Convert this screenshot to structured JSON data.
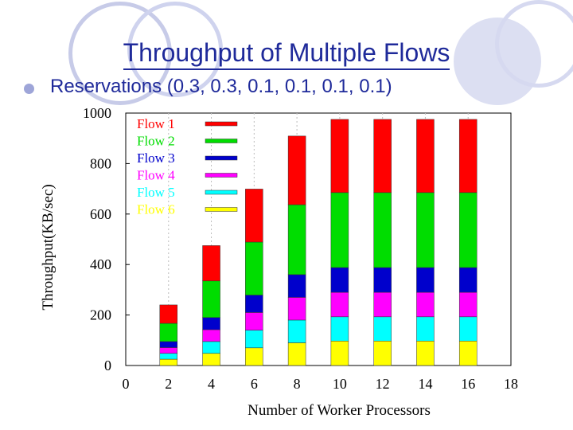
{
  "slide": {
    "title": "Throughput of Multiple Flows",
    "bullet": "Reservations (0.3, 0.3, 0.1, 0.1, 0.1, 0.1)"
  },
  "chart_data": {
    "type": "bar",
    "stacked": true,
    "xlabel": "Number of Worker Processors",
    "ylabel": "Throughput(KB/sec)",
    "xlim": [
      0,
      18
    ],
    "ylim": [
      0,
      1000
    ],
    "xticks": [
      0,
      2,
      4,
      6,
      8,
      10,
      12,
      14,
      16,
      18
    ],
    "yticks": [
      0,
      200,
      400,
      600,
      800,
      1000
    ],
    "grid": "vertical dashed",
    "legend": "top-left",
    "x": [
      2,
      4,
      6,
      8,
      10,
      12,
      14,
      16
    ],
    "series": [
      {
        "name": "Flow 6",
        "color": "#ffff00",
        "values": [
          25,
          48,
          70,
          90,
          97,
          97,
          97,
          97
        ]
      },
      {
        "name": "Flow 5",
        "color": "#00ffff",
        "values": [
          23,
          47,
          70,
          90,
          96,
          96,
          96,
          96
        ]
      },
      {
        "name": "Flow 4",
        "color": "#ff00ff",
        "values": [
          23,
          47,
          70,
          90,
          97,
          97,
          97,
          97
        ]
      },
      {
        "name": "Flow 3",
        "color": "#0000cc",
        "values": [
          24,
          48,
          69,
          90,
          98,
          98,
          98,
          98
        ]
      },
      {
        "name": "Flow 2",
        "color": "#00dd00",
        "values": [
          72,
          145,
          210,
          277,
          297,
          297,
          297,
          297
        ]
      },
      {
        "name": "Flow 1",
        "color": "#ff0000",
        "values": [
          73,
          140,
          210,
          272,
          290,
          290,
          290,
          290
        ]
      }
    ]
  }
}
